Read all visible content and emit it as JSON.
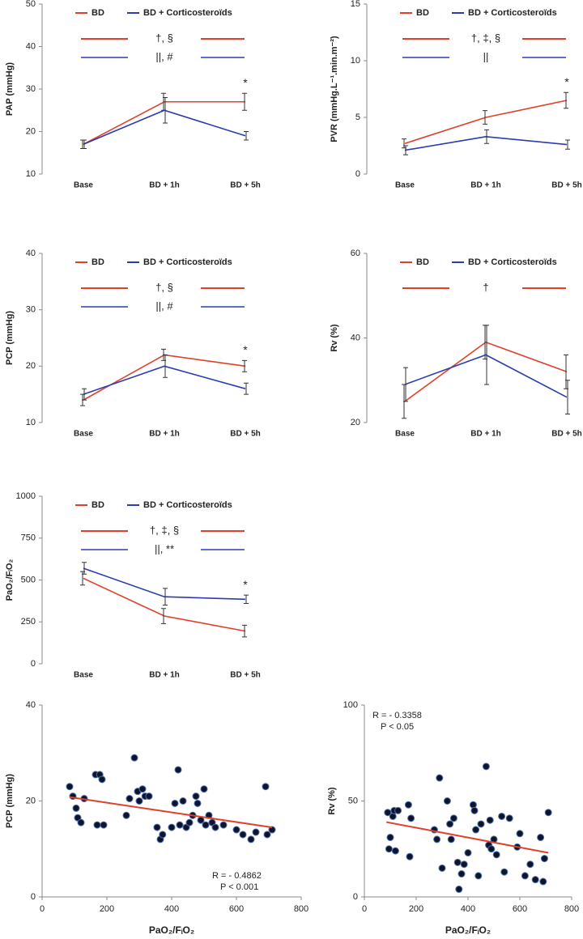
{
  "chart_data": [
    {
      "type": "line",
      "ylabel": "PAP (mmHg)",
      "categories": [
        "Base",
        "BD + 1h",
        "BD + 5h"
      ],
      "ylim": [
        10,
        50
      ],
      "yticks": [
        10,
        20,
        30,
        40,
        50
      ],
      "series": [
        {
          "name": "BD",
          "color": "#e0402a",
          "values": [
            17,
            27,
            27
          ],
          "errors": [
            1,
            2,
            2
          ],
          "significance": "†, §"
        },
        {
          "name": "BD + Corticosteroïds",
          "color": "#2a3cb0",
          "values": [
            17,
            25,
            19
          ],
          "errors": [
            1,
            3,
            1
          ],
          "significance": "||, #"
        }
      ],
      "point_labels": [
        null,
        null,
        "*"
      ]
    },
    {
      "type": "line",
      "ylabel": "PVR  (mmHg.L⁻¹.min.m⁻²)",
      "categories": [
        "Base",
        "BD + 1h",
        "BD + 5h"
      ],
      "ylim": [
        0,
        15
      ],
      "yticks": [
        0,
        5,
        10,
        15
      ],
      "series": [
        {
          "name": "BD",
          "color": "#e0402a",
          "values": [
            2.7,
            5,
            6.5
          ],
          "errors": [
            0.4,
            0.6,
            0.7
          ],
          "significance": "†, ‡, §"
        },
        {
          "name": "BD + Corticosteroïds",
          "color": "#2a3cb0",
          "values": [
            2.1,
            3.3,
            2.6
          ],
          "errors": [
            0.4,
            0.6,
            0.4
          ],
          "significance": "||"
        }
      ],
      "point_labels": [
        null,
        null,
        "*"
      ]
    },
    {
      "type": "line",
      "ylabel": "PCP (mmHg)",
      "categories": [
        "Base",
        "BD + 1h",
        "BD + 5h"
      ],
      "ylim": [
        10,
        40
      ],
      "yticks": [
        10,
        20,
        30,
        40
      ],
      "series": [
        {
          "name": "BD",
          "color": "#e0402a",
          "values": [
            14,
            22,
            20
          ],
          "errors": [
            1,
            1,
            1
          ],
          "significance": "†, §"
        },
        {
          "name": "BD + Corticosteroïds",
          "color": "#2a3cb0",
          "values": [
            15,
            20,
            16
          ],
          "errors": [
            1,
            2,
            1
          ],
          "significance": "||, #"
        }
      ],
      "point_labels": [
        null,
        null,
        "*"
      ]
    },
    {
      "type": "line",
      "ylabel": "Rv (%)",
      "categories": [
        "Base",
        "BD + 1h",
        "BD + 5h"
      ],
      "ylim": [
        20,
        60
      ],
      "yticks": [
        20,
        40,
        60
      ],
      "series": [
        {
          "name": "BD",
          "color": "#e0402a",
          "values": [
            25,
            39,
            32
          ],
          "errors": [
            4,
            4,
            4
          ],
          "significance": "†"
        },
        {
          "name": "BD + Corticosteroïds",
          "color": "#2a3cb0",
          "values": [
            29,
            36,
            26
          ],
          "errors": [
            4,
            7,
            4
          ]
        }
      ]
    },
    {
      "type": "line",
      "ylabel": "PaO₂/FᵢO₂",
      "categories": [
        "Base",
        "BD + 1h",
        "BD + 5h"
      ],
      "ylim": [
        0,
        1000
      ],
      "yticks": [
        0,
        250,
        500,
        750,
        1000
      ],
      "series": [
        {
          "name": "BD",
          "color": "#e0402a",
          "values": [
            510,
            285,
            195
          ],
          "errors": [
            40,
            45,
            35
          ],
          "significance": "†, ‡, §"
        },
        {
          "name": "BD + Corticosteroïds",
          "color": "#2a3cb0",
          "values": [
            570,
            400,
            385
          ],
          "errors": [
            35,
            50,
            25
          ],
          "significance": "||, **"
        }
      ],
      "point_labels": [
        null,
        null,
        "*"
      ]
    },
    {
      "type": "scatter",
      "xlabel": "PaO₂/FᵢO₂",
      "ylabel": "PCP (mmHg)",
      "xlim": [
        0,
        800
      ],
      "xticks": [
        0,
        200,
        400,
        600,
        800
      ],
      "ylim": [
        0,
        40
      ],
      "yticks": [
        0,
        20,
        40
      ],
      "x": [
        85,
        95,
        105,
        110,
        120,
        130,
        165,
        170,
        178,
        185,
        190,
        260,
        270,
        285,
        295,
        300,
        310,
        318,
        330,
        355,
        365,
        372,
        400,
        410,
        420,
        425,
        435,
        445,
        455,
        465,
        475,
        480,
        490,
        500,
        505,
        515,
        525,
        535,
        560,
        600,
        620,
        645,
        660,
        690,
        695,
        710
      ],
      "values": [
        23,
        21,
        18.5,
        16.5,
        15.5,
        20.5,
        25.5,
        15,
        25.5,
        24.5,
        15,
        17,
        20.5,
        29,
        22,
        20,
        22.5,
        21,
        21,
        14.5,
        12,
        13,
        14.5,
        19.5,
        26.5,
        15,
        20,
        14.5,
        15.5,
        17,
        21,
        19.5,
        16,
        22.5,
        15,
        17,
        15.5,
        14.5,
        15,
        14,
        13,
        12,
        13.5,
        23,
        13,
        14
      ],
      "color": "#10142a",
      "fit": {
        "x": [
          85,
          710
        ],
        "values": [
          20.8,
          14.5
        ],
        "color": "#e0402a"
      },
      "annotations": [
        "R = - 0.4862",
        "P < 0.001"
      ]
    },
    {
      "type": "scatter",
      "xlabel": "PaO₂/FᵢO₂",
      "ylabel": "Rv  (%)",
      "xlim": [
        0,
        800
      ],
      "xticks": [
        0,
        200,
        400,
        600,
        800
      ],
      "ylim": [
        0,
        100
      ],
      "yticks": [
        0,
        50,
        100
      ],
      "x": [
        90,
        95,
        100,
        110,
        115,
        120,
        130,
        170,
        175,
        180,
        270,
        280,
        290,
        300,
        320,
        330,
        335,
        345,
        360,
        365,
        375,
        385,
        400,
        420,
        425,
        430,
        440,
        450,
        470,
        480,
        485,
        490,
        500,
        510,
        530,
        540,
        560,
        590,
        600,
        620,
        640,
        660,
        680,
        690,
        695,
        710
      ],
      "values": [
        44,
        25,
        31,
        42,
        45,
        24,
        45,
        48,
        21,
        41,
        35,
        30,
        62,
        15,
        50,
        38,
        30,
        41,
        18,
        4,
        12,
        17,
        23,
        48,
        45,
        35,
        11,
        38,
        68,
        27,
        40,
        25,
        30,
        22,
        42,
        13,
        41,
        26,
        33,
        11,
        17,
        9,
        31,
        8,
        20,
        44
      ],
      "color": "#10142a",
      "fit": {
        "x": [
          85,
          710
        ],
        "values": [
          39,
          23
        ],
        "color": "#e0402a"
      },
      "annotations": [
        "R = - 0.3358",
        "P < 0.05"
      ]
    }
  ]
}
